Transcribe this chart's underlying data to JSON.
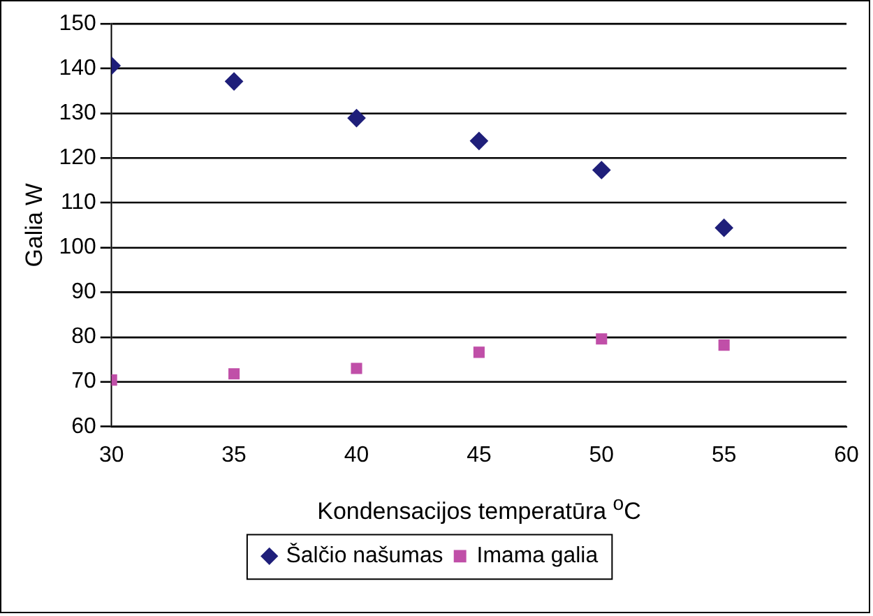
{
  "chart_data": {
    "type": "scatter",
    "xlabel": "Kondensacijos temperatūra $^{o}$C",
    "ylabel": "Galia W",
    "x": [
      30,
      35,
      40,
      45,
      50,
      55
    ],
    "series": [
      {
        "name": "Šalčio našumas",
        "color": "#1f1f7a",
        "marker": "diamond",
        "values": [
          140.6,
          137.1,
          128.9,
          123.8,
          117.3,
          104.4
        ]
      },
      {
        "name": "Imama galia",
        "color": "#c04fa8",
        "marker": "square",
        "values": [
          70.4,
          71.8,
          73.0,
          76.6,
          79.6,
          78.2
        ]
      }
    ],
    "xlim": [
      30,
      60
    ],
    "xticks": [
      30,
      35,
      40,
      45,
      50,
      55,
      60
    ],
    "ylim": [
      60,
      150
    ],
    "yticks": [
      60,
      70,
      80,
      90,
      100,
      110,
      120,
      130,
      140,
      150
    ],
    "grid": "y",
    "legend": "bottom"
  }
}
